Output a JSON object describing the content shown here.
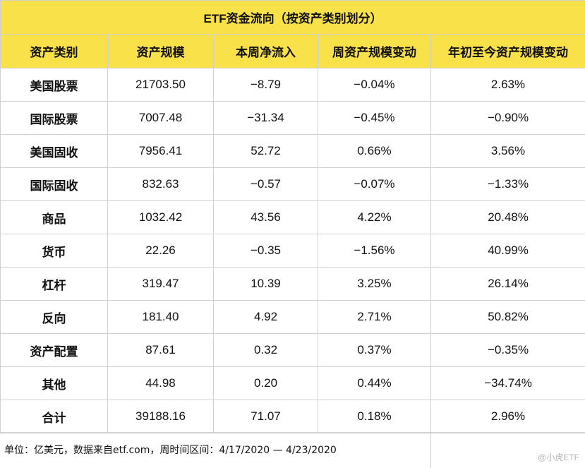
{
  "title": "ETF资金流向（按资产类别划分）",
  "columns": [
    "资产类别",
    "资产规模",
    "本周净流入",
    "周资产规模变动",
    "年初至今资产规模变动"
  ],
  "rows": [
    [
      "美国股票",
      "21703.50",
      "−8.79",
      "−0.04%",
      "2.63%"
    ],
    [
      "国际股票",
      "7007.48",
      "−31.34",
      "−0.45%",
      "−0.90%"
    ],
    [
      "美国固收",
      "7956.41",
      "52.72",
      "0.66%",
      "3.56%"
    ],
    [
      "国际固收",
      "832.63",
      "−0.57",
      "−0.07%",
      "−1.33%"
    ],
    [
      "商品",
      "1032.42",
      "43.56",
      "4.22%",
      "20.48%"
    ],
    [
      "货币",
      "22.26",
      "−0.35",
      "−1.56%",
      "40.99%"
    ],
    [
      "杠杆",
      "319.47",
      "10.39",
      "3.25%",
      "26.14%"
    ],
    [
      "反向",
      "181.40",
      "4.92",
      "2.71%",
      "50.82%"
    ],
    [
      "资产配置",
      "87.61",
      "0.32",
      "0.37%",
      "−0.35%"
    ],
    [
      "其他",
      "44.98",
      "0.20",
      "0.44%",
      "−34.74%"
    ],
    [
      "合计",
      "39188.16",
      "71.07",
      "0.18%",
      "2.96%"
    ]
  ],
  "footer": {
    "note": "单位：亿美元，数据来自etf.com，周时间区间：4/17/2020 — 4/23/2020",
    "brand": "@小虎ETF"
  },
  "colors": {
    "header_bg": "#f9e14a",
    "grid": "#d0d0d0"
  }
}
